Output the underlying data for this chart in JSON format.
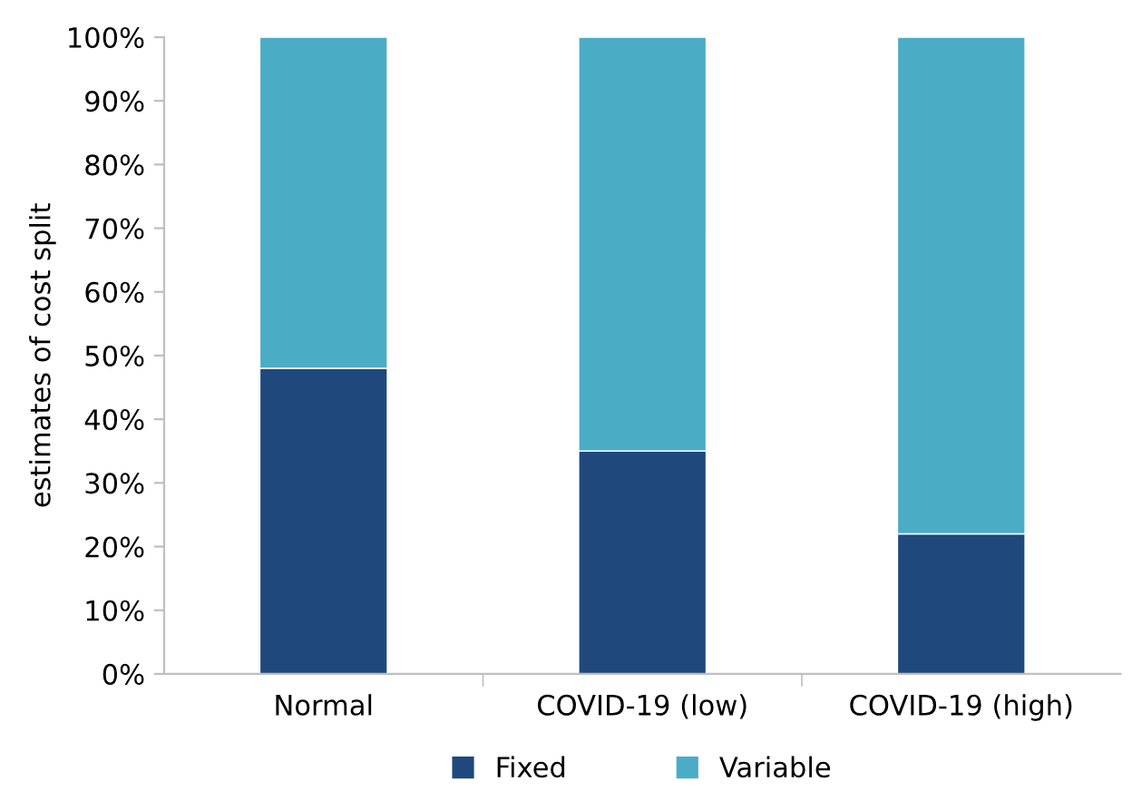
{
  "chart_data": {
    "type": "bar",
    "stacked": true,
    "ylabel": "estimates of cost split",
    "categories": [
      "Normal",
      "COVID-19 (low)",
      "COVID-19 (high)"
    ],
    "series": [
      {
        "name": "Fixed",
        "color": "#1f497d",
        "values": [
          48,
          35,
          22
        ]
      },
      {
        "name": "Variable",
        "color": "#4bacc6",
        "values": [
          52,
          65,
          78
        ]
      }
    ],
    "ylim": [
      0,
      100
    ],
    "yticks": [
      {
        "value": 0,
        "label": "0%"
      },
      {
        "value": 10,
        "label": "10%"
      },
      {
        "value": 20,
        "label": "20%"
      },
      {
        "value": 30,
        "label": "30%"
      },
      {
        "value": 40,
        "label": "40%"
      },
      {
        "value": 50,
        "label": "50%"
      },
      {
        "value": 60,
        "label": "60%"
      },
      {
        "value": 70,
        "label": "70%"
      },
      {
        "value": 80,
        "label": "80%"
      },
      {
        "value": 90,
        "label": "90%"
      },
      {
        "value": 100,
        "label": "100%"
      }
    ],
    "grid": false,
    "legend": "bottom"
  }
}
